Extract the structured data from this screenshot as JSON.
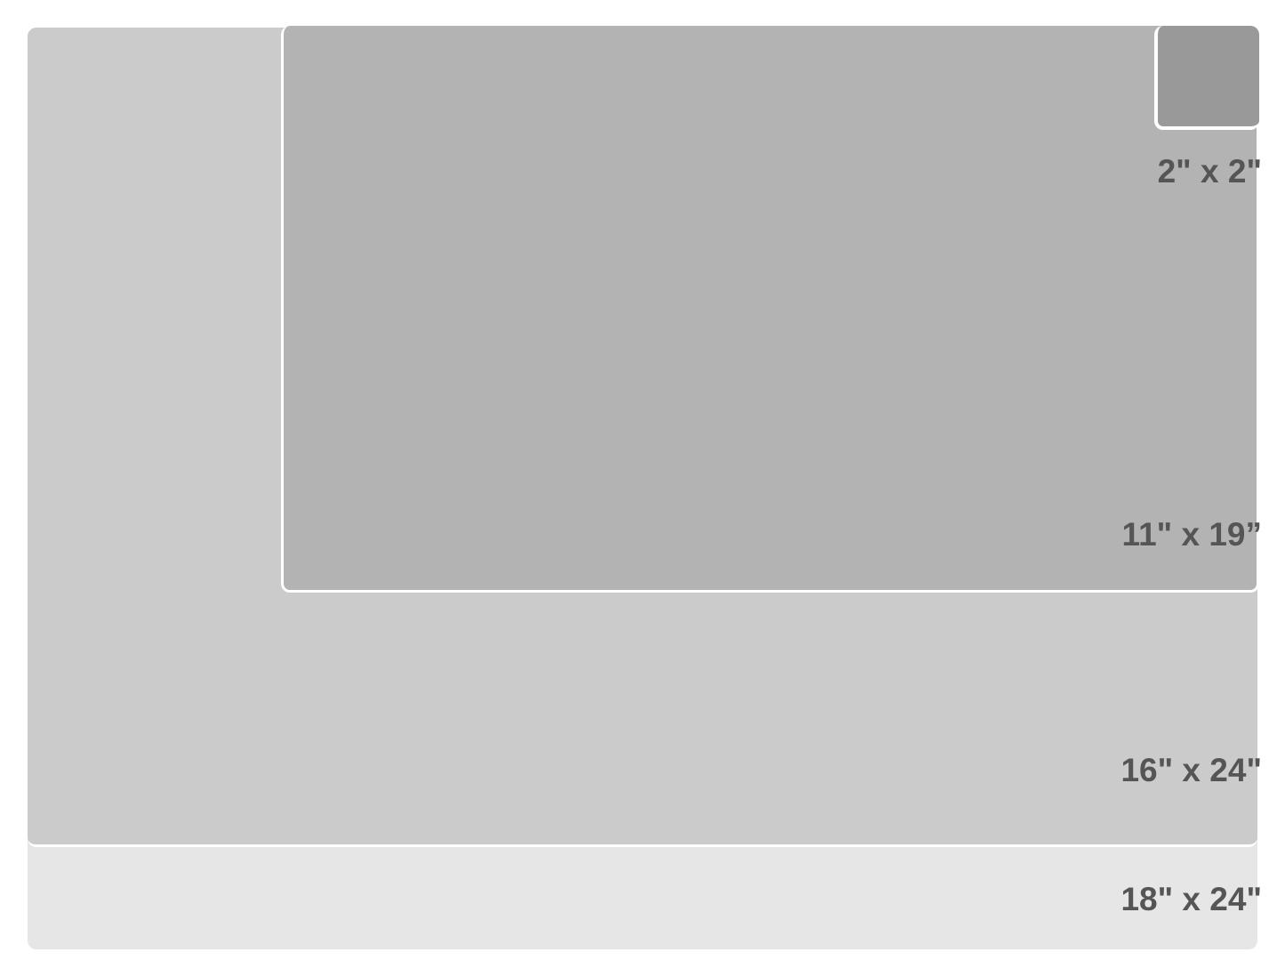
{
  "sizes": [
    {
      "label": "18\" x 24\"",
      "color": "#e6e6e6"
    },
    {
      "label": "16\" x 24\"",
      "color": "#cbcbcb"
    },
    {
      "label": "11\" x 19”",
      "color": "#b3b3b3"
    },
    {
      "label": "2\" x 2\"",
      "color": "#999999"
    }
  ],
  "label_color": "#555555"
}
